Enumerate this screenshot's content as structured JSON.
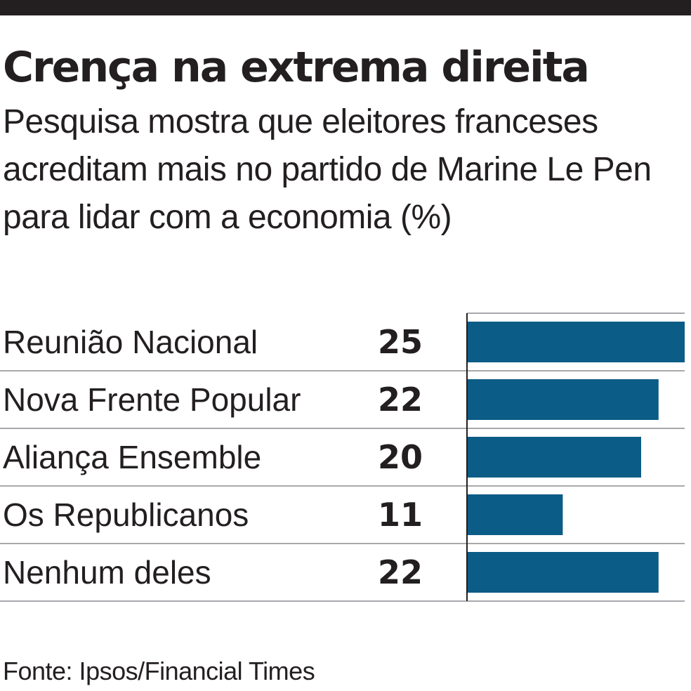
{
  "chart_data": {
    "type": "bar",
    "orientation": "horizontal",
    "title": "Crença na extrema direita",
    "subtitle": "Pesquisa mostra que eleitores franceses acreditam mais no partido de Marine Le Pen para lidar com a economia (%)",
    "categories": [
      "Reunião Nacional",
      "Nova Frente Popular",
      "Aliança Ensemble",
      "Os Republicanos",
      "Nenhum deles"
    ],
    "values": [
      25,
      22,
      20,
      11,
      22
    ],
    "value_labels": [
      "25",
      "22",
      "20",
      "11",
      "22"
    ],
    "xlim": [
      0,
      25
    ],
    "grid": false,
    "legend": "none",
    "xlabel": "",
    "ylabel": "",
    "bar_color": "#0b5c86",
    "source": "Fonte: Ipsos/Financial Times"
  }
}
